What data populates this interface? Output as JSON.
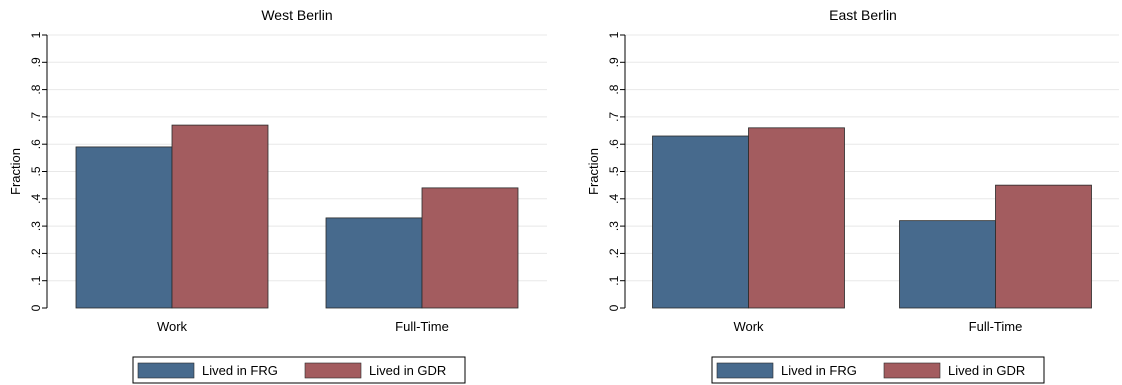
{
  "colors": {
    "frg": "#476A8D",
    "gdr": "#A35C5F",
    "grid": "#E8E8E8",
    "axis": "#000000",
    "background": "#FFFFFF"
  },
  "legend": {
    "items": [
      {
        "label": "Lived in FRG",
        "color": "#476A8D"
      },
      {
        "label": "Lived in GDR",
        "color": "#A35C5F"
      }
    ]
  },
  "chart_data": [
    {
      "type": "bar",
      "title": "West Berlin",
      "ylabel": "Fraction",
      "xlabel": "",
      "categories": [
        "Work",
        "Full-Time"
      ],
      "series": [
        {
          "name": "Lived in FRG",
          "values": [
            0.59,
            0.33
          ]
        },
        {
          "name": "Lived in GDR",
          "values": [
            0.67,
            0.44
          ]
        }
      ],
      "ylim": [
        0,
        1
      ],
      "yticks": [
        0,
        0.1,
        0.2,
        0.3,
        0.4,
        0.5,
        0.6,
        0.7,
        0.8,
        0.9,
        1
      ],
      "ytick_labels": [
        "0",
        ".1",
        ".2",
        ".3",
        ".4",
        ".5",
        ".6",
        ".7",
        ".8",
        ".9",
        "1"
      ],
      "grid": true,
      "legend_position": "bottom"
    },
    {
      "type": "bar",
      "title": "East Berlin",
      "ylabel": "Fraction",
      "xlabel": "",
      "categories": [
        "Work",
        "Full-Time"
      ],
      "series": [
        {
          "name": "Lived in FRG",
          "values": [
            0.63,
            0.32
          ]
        },
        {
          "name": "Lived in GDR",
          "values": [
            0.66,
            0.45
          ]
        }
      ],
      "ylim": [
        0,
        1
      ],
      "yticks": [
        0,
        0.1,
        0.2,
        0.3,
        0.4,
        0.5,
        0.6,
        0.7,
        0.8,
        0.9,
        1
      ],
      "ytick_labels": [
        "0",
        ".1",
        ".2",
        ".3",
        ".4",
        ".5",
        ".6",
        ".7",
        ".8",
        ".9",
        "1"
      ],
      "grid": true,
      "legend_position": "bottom"
    }
  ]
}
